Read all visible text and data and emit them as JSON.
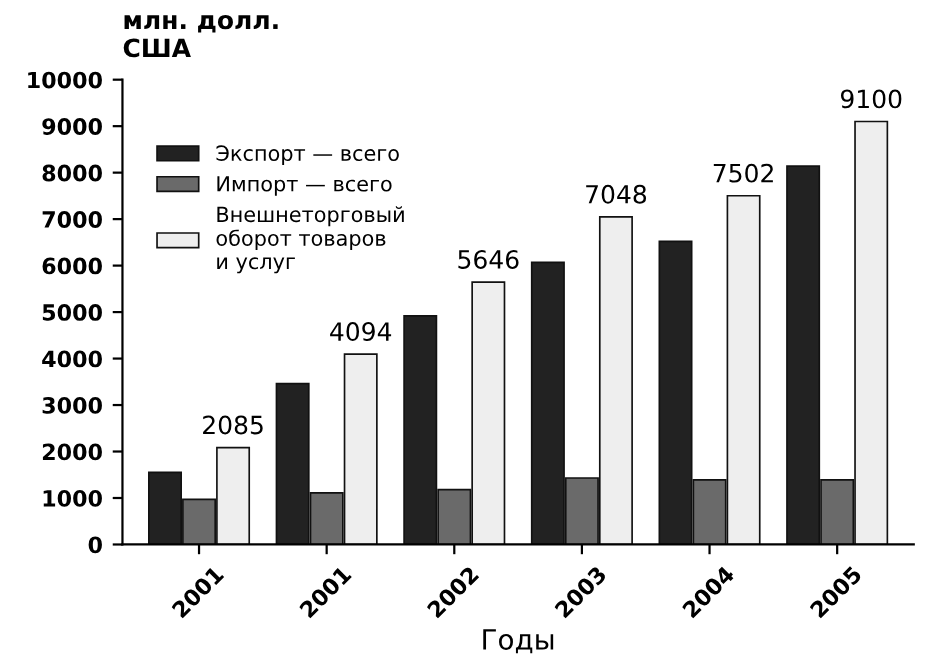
{
  "chart_data": {
    "type": "bar",
    "ylabel": "млн. долл.\nСША",
    "xlabel": "Годы",
    "categories": [
      "2001",
      "2001",
      "2002",
      "2003",
      "2004",
      "2005"
    ],
    "series": [
      {
        "name": "Экспорт — всего",
        "color": "#222222",
        "values": [
          1550,
          3460,
          4920,
          6070,
          6520,
          8140
        ]
      },
      {
        "name": "Импорт — всего",
        "color": "#6a6a6a",
        "values": [
          970,
          1110,
          1180,
          1430,
          1390,
          1390
        ]
      },
      {
        "name": "Внешнеторговый\nоборот товаров\nи услуг",
        "color": "#eeeeee",
        "values": [
          2085,
          4094,
          5646,
          7048,
          7502,
          9100
        ],
        "value_labels": [
          "2085",
          "4094",
          "5646",
          "7048",
          "7502",
          "9100"
        ]
      }
    ],
    "ylim": [
      0,
      10000
    ],
    "yticks": [
      0,
      1000,
      2000,
      3000,
      4000,
      5000,
      6000,
      7000,
      8000,
      9000,
      10000
    ],
    "grid": false,
    "legend": "top left"
  }
}
